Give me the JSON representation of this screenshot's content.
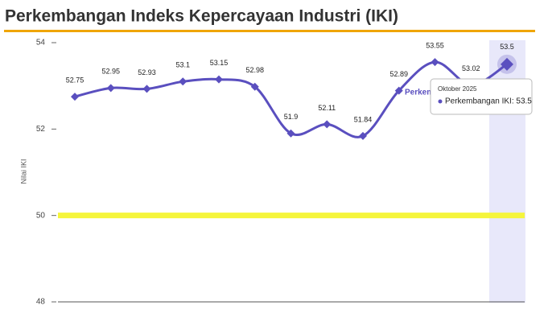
{
  "chart_data": {
    "type": "line",
    "title": "Perkembangan Indeks Kepercayaan Industri (IKI)",
    "y_label": "Nilai IKI",
    "series": [
      {
        "name": "Perkembangan IKI",
        "color": "#5a4fbf",
        "values": [
          52.75,
          52.95,
          52.93,
          53.1,
          53.15,
          52.98,
          51.9,
          52.11,
          51.84,
          52.89,
          53.55,
          53.02,
          53.5
        ]
      }
    ],
    "ylim": [
      48,
      54
    ],
    "yticks": [
      48,
      50,
      52,
      54
    ],
    "reference_line": {
      "value": 50,
      "color": "#f5f53c"
    },
    "tooltip": {
      "title": "Oktober 2025",
      "text": "Perkembangan IKI: 53.5"
    }
  }
}
